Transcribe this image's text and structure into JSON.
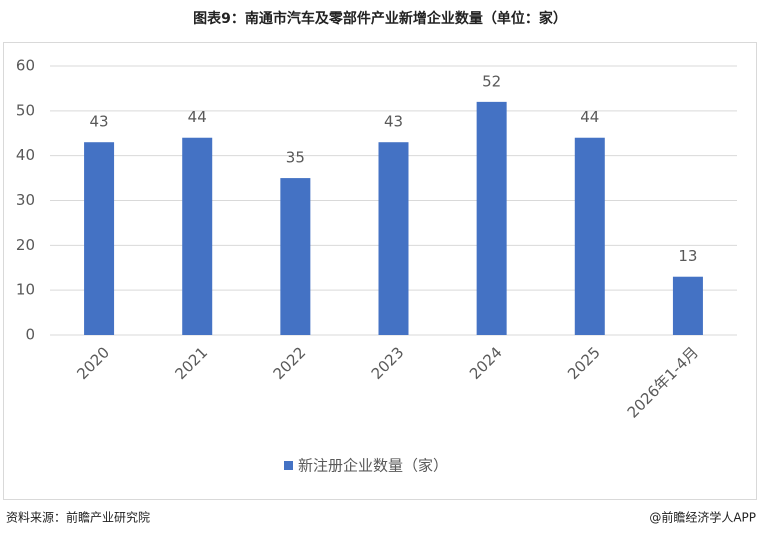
{
  "chart_data": {
    "type": "bar",
    "title": "图表9：南通市汽车及零部件产业新增企业数量（单位：家）",
    "categories": [
      "2020",
      "2021",
      "2022",
      "2023",
      "2024",
      "2025",
      "2026年1-4月"
    ],
    "series": [
      {
        "name": "新注册企业数量（家）",
        "color": "#4472c4",
        "values": [
          43,
          44,
          35,
          43,
          52,
          44,
          13
        ]
      }
    ],
    "ylim": [
      0,
      60
    ],
    "yticks": [
      0,
      10,
      20,
      30,
      40,
      50,
      60
    ],
    "grid": true,
    "legend": "bottom",
    "source": "资料来源：前瞻产业研究院",
    "credit": "@前瞻经济学人APP"
  }
}
